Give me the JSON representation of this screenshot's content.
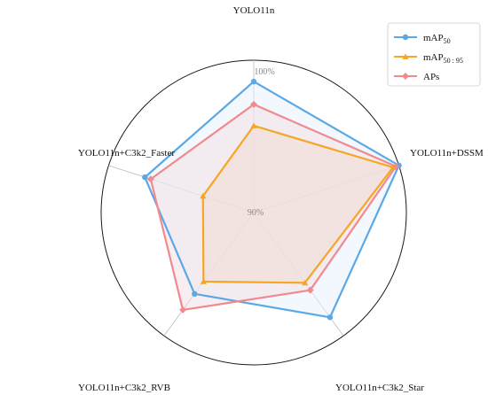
{
  "chart_data": {
    "type": "radar",
    "categories": [
      "YOLO11n",
      "YOLO11n+DSSM",
      "YOLO11n+C3k2_Star",
      "YOLO11n+C3k2_RVB",
      "YOLO11n+C3k2_Faster"
    ],
    "range": [
      90,
      100
    ],
    "ticks": [
      "90%",
      "100%"
    ],
    "series": [
      {
        "name": "mAP50",
        "legend_main": "mAP",
        "legend_sub": "50",
        "color": "#5aa9e6",
        "fill": "#e6f2fb",
        "marker": "circle",
        "values": [
          98.6,
          100,
          98.5,
          96.6,
          97.5
        ]
      },
      {
        "name": "mAP50:95",
        "legend_main": "mAP",
        "legend_sub": "50 : 95",
        "color": "#f5a623",
        "fill": "#f3d9bf",
        "marker": "triangle",
        "values": [
          95.7,
          99.6,
          95.7,
          95.6,
          93.5
        ]
      },
      {
        "name": "APs",
        "legend_main": "APs",
        "legend_sub": "",
        "color": "#f08a8f",
        "fill": "#f2dde3",
        "marker": "diamond",
        "values": [
          97.1,
          99.8,
          96.3,
          97.9,
          97.1
        ]
      }
    ],
    "legend_position": "top-right"
  }
}
